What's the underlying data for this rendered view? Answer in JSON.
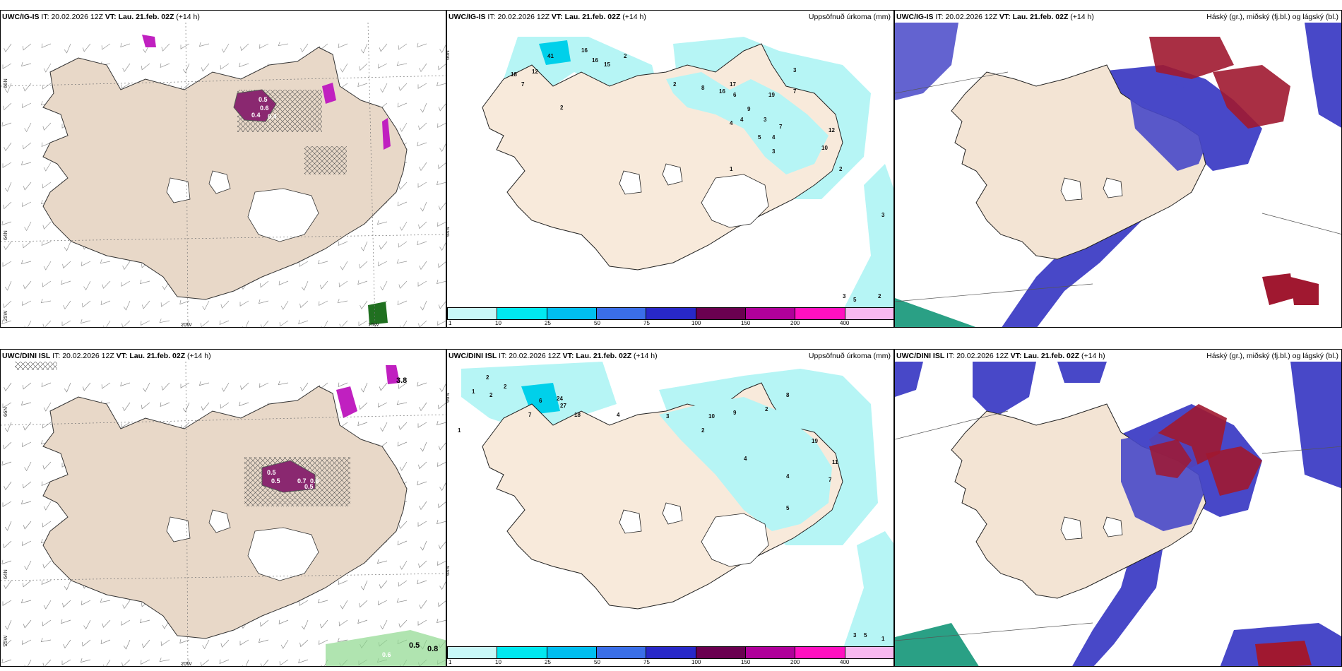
{
  "panels": {
    "top_left": {
      "model": "UWC/IG-IS",
      "it_label": "IT:",
      "it": "20.02.2026 12Z",
      "vt_label": "VT:",
      "vt": "Lau. 21.feb. 02Z",
      "lead": "(+14 h)",
      "values": [
        "0.5",
        "0.6",
        "0.4",
        "0.4"
      ]
    },
    "top_mid": {
      "model": "UWC/IG-IS",
      "it_label": "IT:",
      "it": "20.02.2026 12Z",
      "vt_label": "VT:",
      "vt": "Lau. 21.feb. 02Z",
      "lead": "(+14 h)",
      "title": "Uppsöfnuð úrkoma (mm)",
      "values": [
        "41",
        "16",
        "16",
        "15",
        "2",
        "18",
        "12",
        "7",
        "2",
        "2",
        "8",
        "16",
        "17",
        "6",
        "19",
        "3",
        "7",
        "4",
        "12",
        "10",
        "9",
        "3",
        "4",
        "4",
        "5",
        "7",
        "3",
        "2",
        "1",
        "3",
        "3",
        "5",
        "2"
      ]
    },
    "top_right": {
      "model": "UWC/IG-IS",
      "it_label": "IT:",
      "it": "20.02.2026 12Z",
      "vt_label": "VT:",
      "vt": "Lau. 21.feb. 02Z",
      "lead": "(+14 h)",
      "title": "Háský (gr.), miðský (fj.bl.) og lágský (bl.)"
    },
    "bot_left": {
      "model": "UWC/DINI ISL",
      "it_label": "IT:",
      "it": "20.02.2026 12Z",
      "vt_label": "VT:",
      "vt": "Lau. 21.feb. 02Z",
      "lead": "(+14 h)",
      "values": [
        "3.8",
        "0.5",
        "0.5",
        "0.7",
        "0.6",
        "0.5",
        "0.5",
        "0.8",
        "0.6"
      ]
    },
    "bot_mid": {
      "model": "UWC/DINI ISL",
      "it_label": "IT:",
      "it": "20.02.2026 12Z",
      "vt_label": "VT:",
      "vt": "Lau. 21.feb. 02Z",
      "lead": "(+14 h)",
      "title": "Uppsöfnuð úrkoma (mm)",
      "values": [
        "2",
        "2",
        "1",
        "2",
        "1",
        "24",
        "27",
        "18",
        "6",
        "7",
        "4",
        "3",
        "2",
        "10",
        "9",
        "2",
        "8",
        "4",
        "19",
        "11",
        "7",
        "4",
        "5",
        "3",
        "5",
        "1"
      ]
    },
    "bot_right": {
      "model": "UWC/DINI ISL",
      "it_label": "IT:",
      "it": "20.02.2026 12Z",
      "vt_label": "VT:",
      "vt": "Lau. 21.feb. 02Z",
      "lead": "(+14 h)",
      "title": "Háský (gr.), miðský (fj.bl.) og lágský (bl.)"
    }
  },
  "axis_labels": {
    "lat66": "66N",
    "lat64": "64N",
    "lon20": "20W",
    "lon15": "15W",
    "lon25": "25W"
  },
  "colorbar": {
    "ticks": [
      "1",
      "10",
      "25",
      "50",
      "75",
      "100",
      "150",
      "200",
      "400"
    ],
    "colors": [
      "#c8f8f8",
      "#00e8f0",
      "#00bef0",
      "#3a6ee8",
      "#2828c8",
      "#6a0050",
      "#b0009a",
      "#ff10c0",
      "#f8b8f0"
    ]
  },
  "colors": {
    "land": "#f3e4d4",
    "sea": "#ffffff",
    "precip_light": "#b6f5f5",
    "cloud_mid": "#4848c8",
    "cloud_high": "#a01830",
    "cloud_low": "#2a9fd8"
  }
}
